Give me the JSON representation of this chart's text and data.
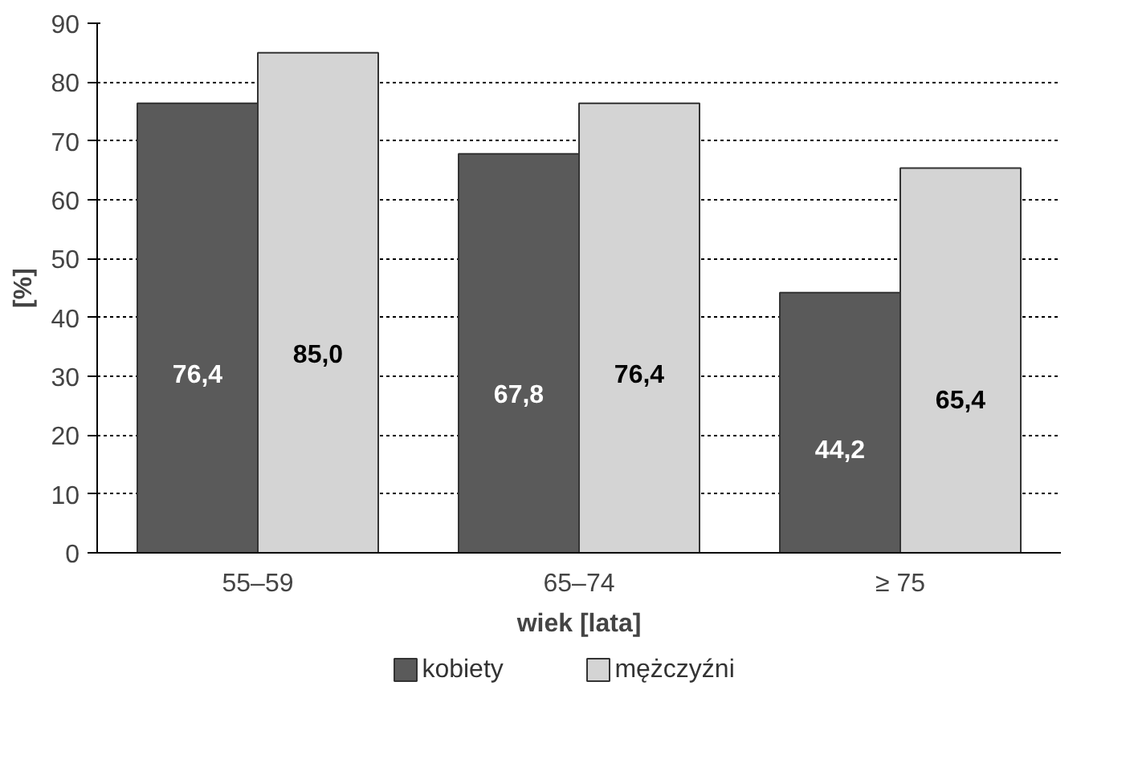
{
  "chart_data": {
    "type": "bar",
    "xlabel": "wiek [lata]",
    "ylabel": "[%]",
    "categories": [
      "55–59",
      "65–74",
      "≥ 75"
    ],
    "series": [
      {
        "name": "kobiety",
        "color": "#5a5a5a",
        "values": [
          76.4,
          67.8,
          44.2
        ],
        "value_labels": [
          "76,4",
          "67,8",
          "44,2"
        ]
      },
      {
        "name": "mężczyźni",
        "color": "#d4d4d4",
        "values": [
          85.0,
          76.4,
          65.4
        ],
        "value_labels": [
          "85,0",
          "76,4",
          "65,4"
        ]
      }
    ],
    "ylim": [
      0,
      90
    ],
    "yticks": [
      0,
      10,
      20,
      30,
      40,
      50,
      60,
      70,
      80,
      90
    ],
    "grid": "y",
    "legend": "bottom"
  }
}
